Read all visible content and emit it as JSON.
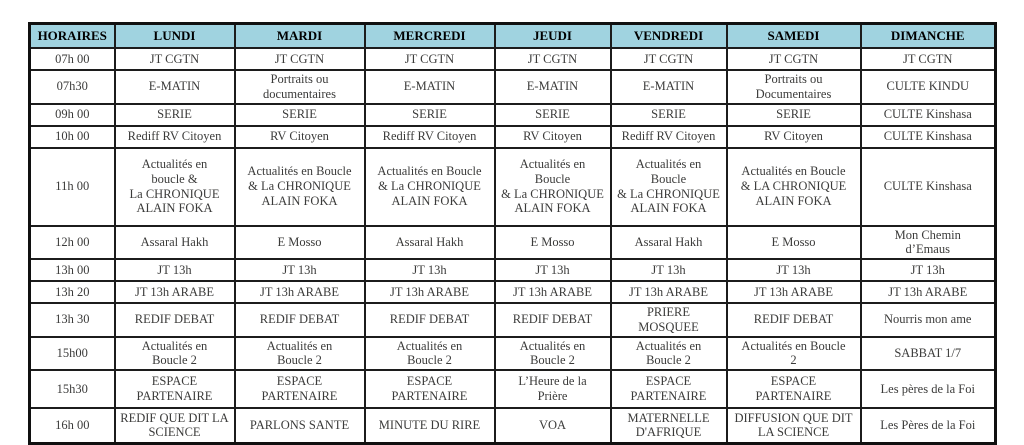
{
  "table": {
    "columns": [
      "HORAIRES",
      "LUNDI",
      "MARDI",
      "MERCREDI",
      "JEUDI",
      "VENDREDI",
      "SAMEDI",
      "DIMANCHE"
    ],
    "rows": [
      {
        "time": "07h 00",
        "cells": [
          "JT CGTN",
          "JT CGTN",
          "JT CGTN",
          "JT CGTN",
          "JT CGTN",
          "JT CGTN",
          "JT CGTN"
        ]
      },
      {
        "time": "07h30",
        "cells": [
          "E-MATIN",
          "Portraits ou\ndocumentaires",
          "E-MATIN",
          "E-MATIN",
          "E-MATIN",
          "Portraits ou\nDocumentaires",
          "CULTE KINDU"
        ]
      },
      {
        "time": "09h 00",
        "cells": [
          "SERIE",
          "SERIE",
          "SERIE",
          "SERIE",
          "SERIE",
          "SERIE",
          "CULTE Kinshasa"
        ]
      },
      {
        "time": "10h 00",
        "cells": [
          "Rediff RV Citoyen",
          "RV Citoyen",
          "Rediff RV Citoyen",
          "RV Citoyen",
          "Rediff RV Citoyen",
          "RV Citoyen",
          "CULTE Kinshasa"
        ]
      },
      {
        "time": "11h 00",
        "cells": [
          "Actualités en\nboucle &\nLa CHRONIQUE\nALAIN FOKA",
          "Actualités en Boucle\n& La CHRONIQUE\nALAIN FOKA",
          "Actualités en Boucle\n& La CHRONIQUE\nALAIN FOKA",
          "Actualités en\nBoucle\n& La CHRONIQUE\nALAIN FOKA",
          "Actualités en\nBoucle\n& La CHRONIQUE\nALAIN FOKA",
          "Actualités en Boucle\n& LA CHRONIQUE\nALAIN FOKA",
          "CULTE Kinshasa"
        ]
      },
      {
        "time": "12h 00",
        "cells": [
          "Assaral Hakh",
          "E Mosso",
          "Assaral Hakh",
          "E Mosso",
          "Assaral Hakh",
          "E Mosso",
          "Mon Chemin\nd’Emaus"
        ]
      },
      {
        "time": "13h 00",
        "cells": [
          "JT 13h",
          "JT 13h",
          "JT 13h",
          "JT 13h",
          "JT 13h",
          "JT 13h",
          "JT 13h"
        ]
      },
      {
        "time": "13h 20",
        "cells": [
          "JT 13h ARABE",
          "JT 13h ARABE",
          "JT 13h ARABE",
          "JT 13h ARABE",
          "JT 13h ARABE",
          "JT 13h ARABE",
          "JT 13h ARABE"
        ]
      },
      {
        "time": "13h 30",
        "cells": [
          "REDIF DEBAT",
          "REDIF DEBAT",
          "REDIF DEBAT",
          "REDIF DEBAT",
          "PRIERE\nMOSQUEE",
          "REDIF DEBAT",
          "Nourris mon ame"
        ]
      },
      {
        "time": "15h00",
        "cells": [
          "Actualités en\nBoucle 2",
          "Actualités en\nBoucle 2",
          "Actualités en\nBoucle 2",
          "Actualités en\nBoucle 2",
          "Actualités en\nBoucle 2",
          "Actualités en Boucle\n2",
          "SABBAT 1/7"
        ]
      },
      {
        "time": "15h30",
        "cells": [
          "ESPACE\nPARTENAIRE",
          "ESPACE\nPARTENAIRE",
          "ESPACE\nPARTENAIRE",
          "L’Heure de la\nPrière",
          "ESPACE\nPARTENAIRE",
          "ESPACE\nPARTENAIRE",
          "Les pères de la Foi"
        ]
      },
      {
        "time": "16h 00",
        "cells": [
          "REDIF QUE DIT LA\nSCIENCE",
          "PARLONS SANTE",
          "MINUTE DU RIRE",
          "VOA",
          "MATERNELLE\nD'AFRIQUE",
          "DIFFUSION QUE DIT\nLA SCIENCE",
          "Les Pères de la Foi"
        ]
      }
    ]
  },
  "colors": {
    "header_bg": "#a0d3e0",
    "border": "#1c1c1c",
    "cell_text": "#3b3b3a",
    "header_text": "#000000"
  }
}
